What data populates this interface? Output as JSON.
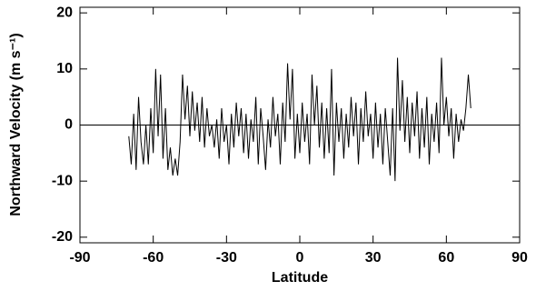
{
  "chart_data": {
    "type": "line",
    "xlabel": "Latitude",
    "ylabel": "Northward Velocity (m s⁻¹)",
    "x": [
      -70,
      -69,
      -68,
      -67,
      -66,
      -65,
      -64,
      -63,
      -62,
      -61,
      -60,
      -59,
      -58,
      -57,
      -56,
      -55,
      -54,
      -53,
      -52,
      -51,
      -50,
      -49,
      -48,
      -47,
      -46,
      -45,
      -44,
      -43,
      -42,
      -41,
      -40,
      -39,
      -38,
      -37,
      -36,
      -35,
      -34,
      -33,
      -32,
      -31,
      -30,
      -29,
      -28,
      -27,
      -26,
      -25,
      -24,
      -23,
      -22,
      -21,
      -20,
      -19,
      -18,
      -17,
      -16,
      -15,
      -14,
      -13,
      -12,
      -11,
      -10,
      -9,
      -8,
      -7,
      -6,
      -5,
      -4,
      -3,
      -2,
      -1,
      0,
      1,
      2,
      3,
      4,
      5,
      6,
      7,
      8,
      9,
      10,
      11,
      12,
      13,
      14,
      15,
      16,
      17,
      18,
      19,
      20,
      21,
      22,
      23,
      24,
      25,
      26,
      27,
      28,
      29,
      30,
      31,
      32,
      33,
      34,
      35,
      36,
      37,
      38,
      39,
      40,
      41,
      42,
      43,
      44,
      45,
      46,
      47,
      48,
      49,
      50,
      51,
      52,
      53,
      54,
      55,
      56,
      57,
      58,
      59,
      60,
      61,
      62,
      63,
      64,
      65,
      66,
      67,
      68,
      69,
      70
    ],
    "values": [
      -2,
      -7,
      2,
      -8,
      5,
      -3,
      -7,
      0,
      -7,
      3,
      -5,
      10,
      -2,
      9,
      -6,
      3,
      -8,
      -4,
      -9,
      -6,
      -9,
      -3,
      9,
      1,
      7,
      -2,
      6,
      -1,
      4,
      -3,
      5,
      -4,
      3,
      -2,
      0,
      -4,
      1,
      -6,
      3,
      -3,
      0,
      -7,
      2,
      -4,
      4,
      -2,
      3,
      -5,
      2,
      -6,
      1,
      -3,
      5,
      -7,
      3,
      -2,
      -8,
      1,
      -4,
      5,
      -2,
      2,
      -7,
      4,
      -3,
      11,
      1,
      10,
      -6,
      2,
      -5,
      4,
      -3,
      2,
      -7,
      9,
      0,
      7,
      -4,
      4,
      -6,
      3,
      -5,
      10,
      -9,
      4,
      -3,
      3,
      -6,
      2,
      -4,
      5,
      -2,
      4,
      -7,
      3,
      -3,
      6,
      -2,
      2,
      -6,
      4,
      -4,
      2,
      -7,
      3,
      -3,
      -9,
      3,
      -10,
      12,
      -1,
      8,
      -3,
      5,
      -5,
      4,
      -2,
      6,
      -6,
      3,
      -4,
      5,
      -7,
      2,
      -3,
      4,
      -5,
      12,
      0,
      5,
      -2,
      3,
      -6,
      2,
      -3,
      1,
      -1,
      3,
      9,
      3
    ],
    "color": "#000000",
    "reference_line": 0,
    "xlim": [
      -90,
      90
    ],
    "xticks": [
      -90,
      -60,
      -30,
      0,
      30,
      60,
      90
    ],
    "ylim": [
      -21,
      21
    ],
    "yticks": [
      -20,
      -10,
      0,
      10,
      20
    ]
  }
}
